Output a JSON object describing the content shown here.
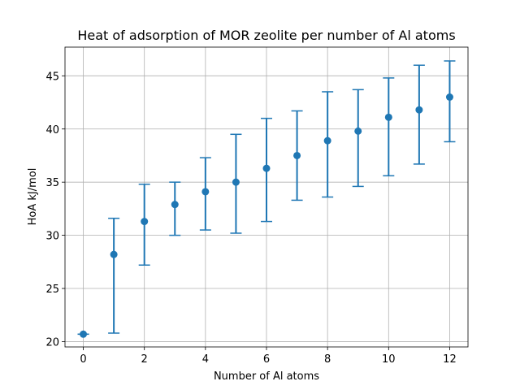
{
  "chart_data": {
    "type": "scatter",
    "title": "Heat of adsorption of MOR zeolite per number of Al atoms",
    "xlabel": "Number of Al atoms",
    "ylabel": "HoA kJ/mol",
    "xlim": [
      -0.6,
      12.6
    ],
    "ylim": [
      19.5,
      47.7
    ],
    "xticks": [
      0,
      2,
      4,
      6,
      8,
      10,
      12
    ],
    "yticks": [
      20,
      25,
      30,
      35,
      40,
      45
    ],
    "grid": true,
    "color": "#1f77b4",
    "series": [
      {
        "x": [
          0,
          1,
          2,
          3,
          4,
          5,
          6,
          7,
          8,
          9,
          10,
          11,
          12
        ],
        "y": [
          20.7,
          28.2,
          31.3,
          32.9,
          34.1,
          35.0,
          36.3,
          37.5,
          38.9,
          39.8,
          41.1,
          41.8,
          43.0
        ],
        "yerr_low": [
          20.7,
          20.8,
          27.2,
          30.0,
          30.5,
          30.2,
          31.3,
          33.3,
          33.6,
          34.6,
          35.6,
          36.7,
          38.8
        ],
        "yerr_high": [
          20.7,
          31.6,
          34.8,
          35.0,
          37.3,
          39.5,
          41.0,
          41.7,
          43.5,
          43.7,
          44.8,
          46.0,
          46.4
        ]
      }
    ]
  }
}
